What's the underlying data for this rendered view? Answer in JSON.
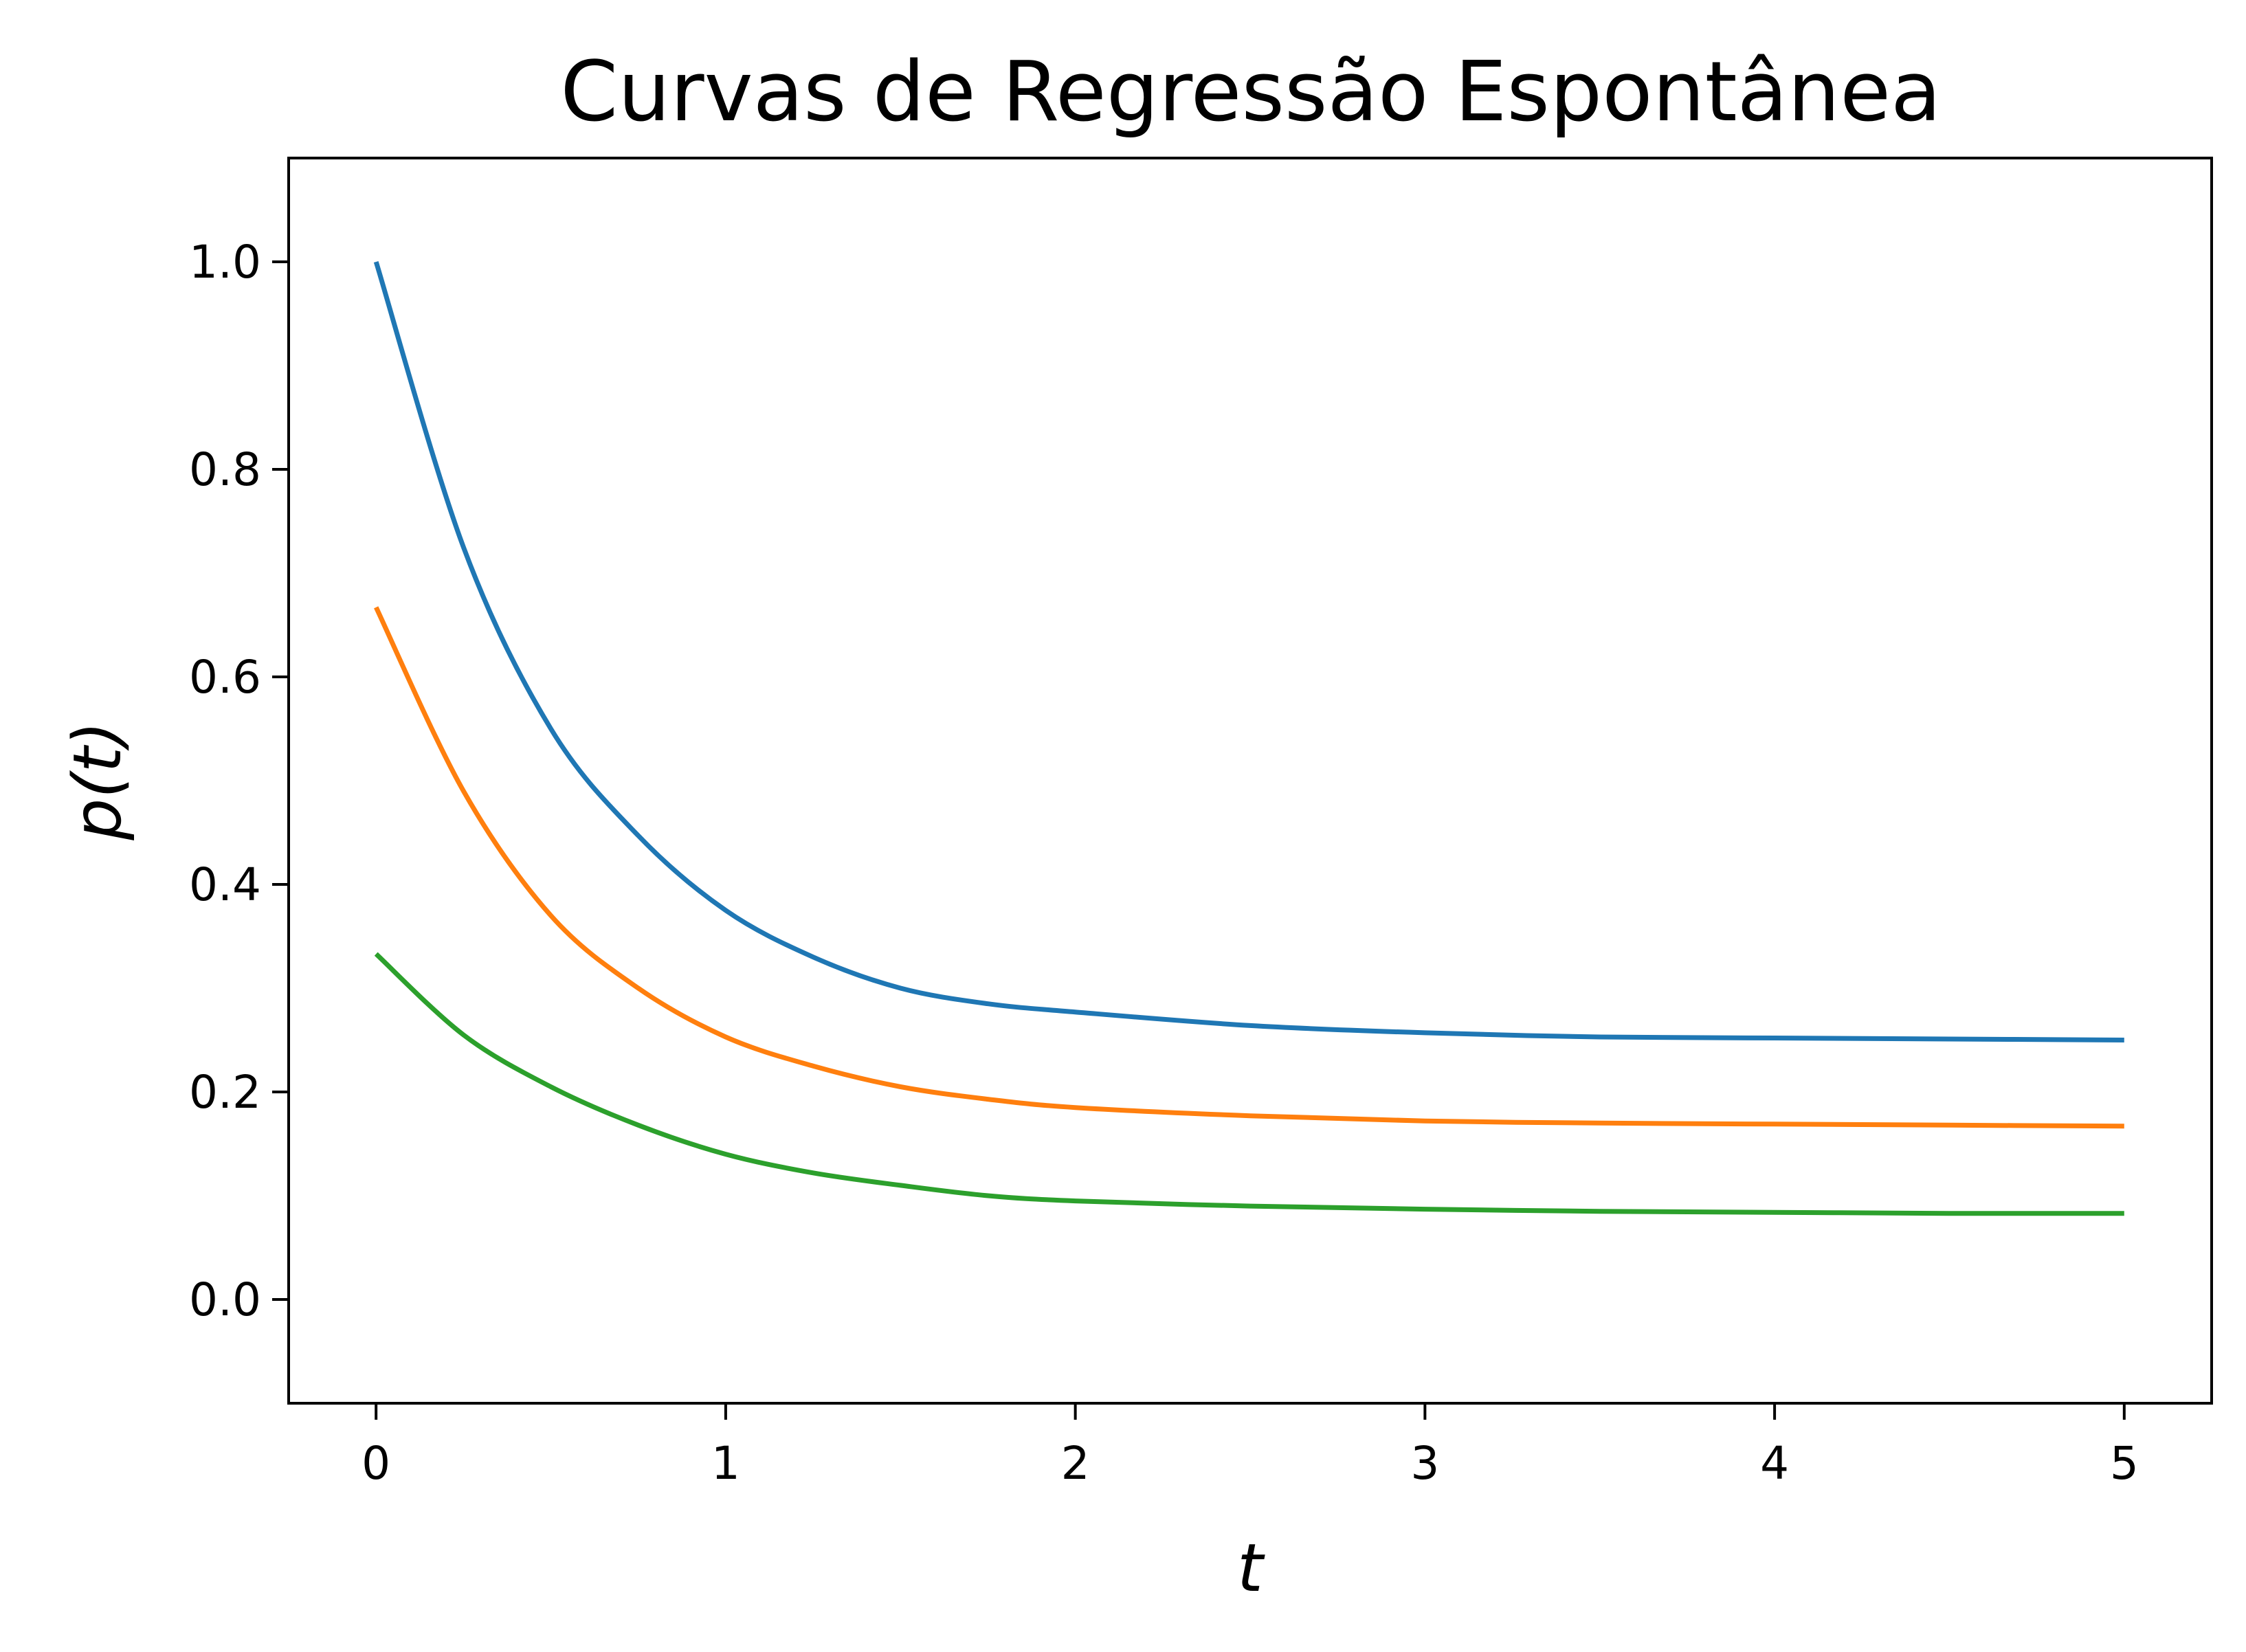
{
  "chart_data": {
    "type": "line",
    "title": "Curvas de Regressão Espontânea",
    "xlabel": "t",
    "ylabel": "p(t)",
    "xlim": [
      -0.25,
      5.25
    ],
    "ylim": [
      -0.1,
      1.1
    ],
    "xticks": [
      0,
      1,
      2,
      3,
      4,
      5
    ],
    "xtick_labels": [
      "0",
      "1",
      "2",
      "3",
      "4",
      "5"
    ],
    "yticks": [
      0.0,
      0.2,
      0.4,
      0.6,
      0.8,
      1.0
    ],
    "ytick_labels": [
      "0.0",
      "0.2",
      "0.4",
      "0.6",
      "0.8",
      "1.0"
    ],
    "grid": false,
    "legend": false,
    "x": [
      0,
      0.25,
      0.5,
      0.75,
      1.0,
      1.25,
      1.5,
      1.75,
      2.0,
      2.5,
      3.0,
      3.5,
      4.0,
      4.5,
      5.0
    ],
    "series": [
      {
        "color": "#1f77b4",
        "values": [
          1.0,
          0.725,
          0.55,
          0.447,
          0.375,
          0.33,
          0.3,
          0.285,
          0.277,
          0.264,
          0.257,
          0.253,
          0.252,
          0.251,
          0.25
        ]
      },
      {
        "color": "#ff7f0e",
        "values": [
          0.667,
          0.49,
          0.37,
          0.3,
          0.253,
          0.225,
          0.205,
          0.193,
          0.185,
          0.177,
          0.172,
          0.17,
          0.169,
          0.168,
          0.167
        ]
      },
      {
        "color": "#2ca02c",
        "values": [
          0.333,
          0.255,
          0.205,
          0.168,
          0.14,
          0.122,
          0.11,
          0.1,
          0.095,
          0.09,
          0.087,
          0.085,
          0.084,
          0.083,
          0.083
        ]
      }
    ]
  }
}
